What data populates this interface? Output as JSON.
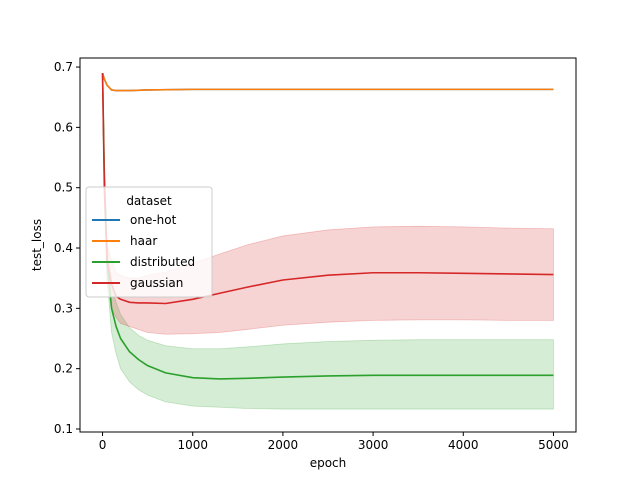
{
  "chart_data": {
    "type": "line",
    "title": "",
    "xlabel": "epoch",
    "ylabel": "test_loss",
    "xlim": [
      -250,
      5250
    ],
    "ylim": [
      0.095,
      0.715
    ],
    "xticks": [
      0,
      1000,
      2000,
      3000,
      4000,
      5000
    ],
    "xtick_labels": [
      "0",
      "1000",
      "2000",
      "3000",
      "4000",
      "5000"
    ],
    "yticks": [
      0.1,
      0.2,
      0.3,
      0.4,
      0.5,
      0.6,
      0.7
    ],
    "ytick_labels": [
      "0.1",
      "0.2",
      "0.3",
      "0.4",
      "0.5",
      "0.6",
      "0.7"
    ],
    "grid": false,
    "legend": {
      "title": "dataset",
      "placement": "center-left"
    },
    "series": [
      {
        "name": "one-hot",
        "color": "#1f77b4",
        "x": [
          0,
          20,
          50,
          100,
          150,
          200,
          300,
          500,
          1000,
          2000,
          3000,
          4000,
          5000
        ],
        "y": [
          0.69,
          0.68,
          0.67,
          0.662,
          0.661,
          0.661,
          0.661,
          0.662,
          0.663,
          0.663,
          0.663,
          0.663,
          0.663
        ]
      },
      {
        "name": "haar",
        "color": "#ff7f0e",
        "x": [
          0,
          20,
          50,
          100,
          150,
          200,
          300,
          500,
          1000,
          2000,
          3000,
          4000,
          5000
        ],
        "y": [
          0.69,
          0.68,
          0.67,
          0.662,
          0.661,
          0.661,
          0.661,
          0.662,
          0.663,
          0.663,
          0.663,
          0.663,
          0.663
        ]
      },
      {
        "name": "distributed",
        "color": "#2ca02c",
        "x": [
          0,
          20,
          50,
          100,
          150,
          200,
          300,
          400,
          500,
          700,
          1000,
          1300,
          1600,
          2000,
          2500,
          3000,
          3500,
          4000,
          4500,
          5000
        ],
        "y": [
          0.69,
          0.52,
          0.38,
          0.3,
          0.27,
          0.25,
          0.228,
          0.215,
          0.205,
          0.193,
          0.185,
          0.183,
          0.184,
          0.186,
          0.188,
          0.189,
          0.189,
          0.189,
          0.189,
          0.189
        ],
        "lower": [
          0.69,
          0.5,
          0.35,
          0.26,
          0.225,
          0.2,
          0.178,
          0.165,
          0.156,
          0.145,
          0.138,
          0.136,
          0.134,
          0.133,
          0.133,
          0.133,
          0.133,
          0.133,
          0.133,
          0.133
        ],
        "upper": [
          0.69,
          0.55,
          0.41,
          0.34,
          0.31,
          0.29,
          0.268,
          0.255,
          0.247,
          0.238,
          0.233,
          0.233,
          0.236,
          0.241,
          0.245,
          0.247,
          0.248,
          0.248,
          0.248,
          0.248
        ]
      },
      {
        "name": "gaussian",
        "color": "#d62728",
        "x": [
          0,
          20,
          50,
          100,
          150,
          200,
          300,
          400,
          500,
          700,
          1000,
          1300,
          1600,
          2000,
          2500,
          3000,
          3500,
          4000,
          4500,
          5000
        ],
        "y": [
          0.69,
          0.5,
          0.38,
          0.34,
          0.32,
          0.315,
          0.31,
          0.309,
          0.309,
          0.308,
          0.315,
          0.325,
          0.335,
          0.347,
          0.355,
          0.359,
          0.359,
          0.358,
          0.357,
          0.356
        ],
        "lower": [
          0.69,
          0.48,
          0.34,
          0.3,
          0.285,
          0.275,
          0.27,
          0.265,
          0.26,
          0.257,
          0.258,
          0.26,
          0.265,
          0.272,
          0.277,
          0.28,
          0.281,
          0.281,
          0.28,
          0.28
        ],
        "upper": [
          0.69,
          0.53,
          0.41,
          0.38,
          0.36,
          0.355,
          0.35,
          0.35,
          0.355,
          0.36,
          0.375,
          0.39,
          0.405,
          0.42,
          0.43,
          0.435,
          0.436,
          0.435,
          0.433,
          0.432
        ]
      }
    ]
  }
}
